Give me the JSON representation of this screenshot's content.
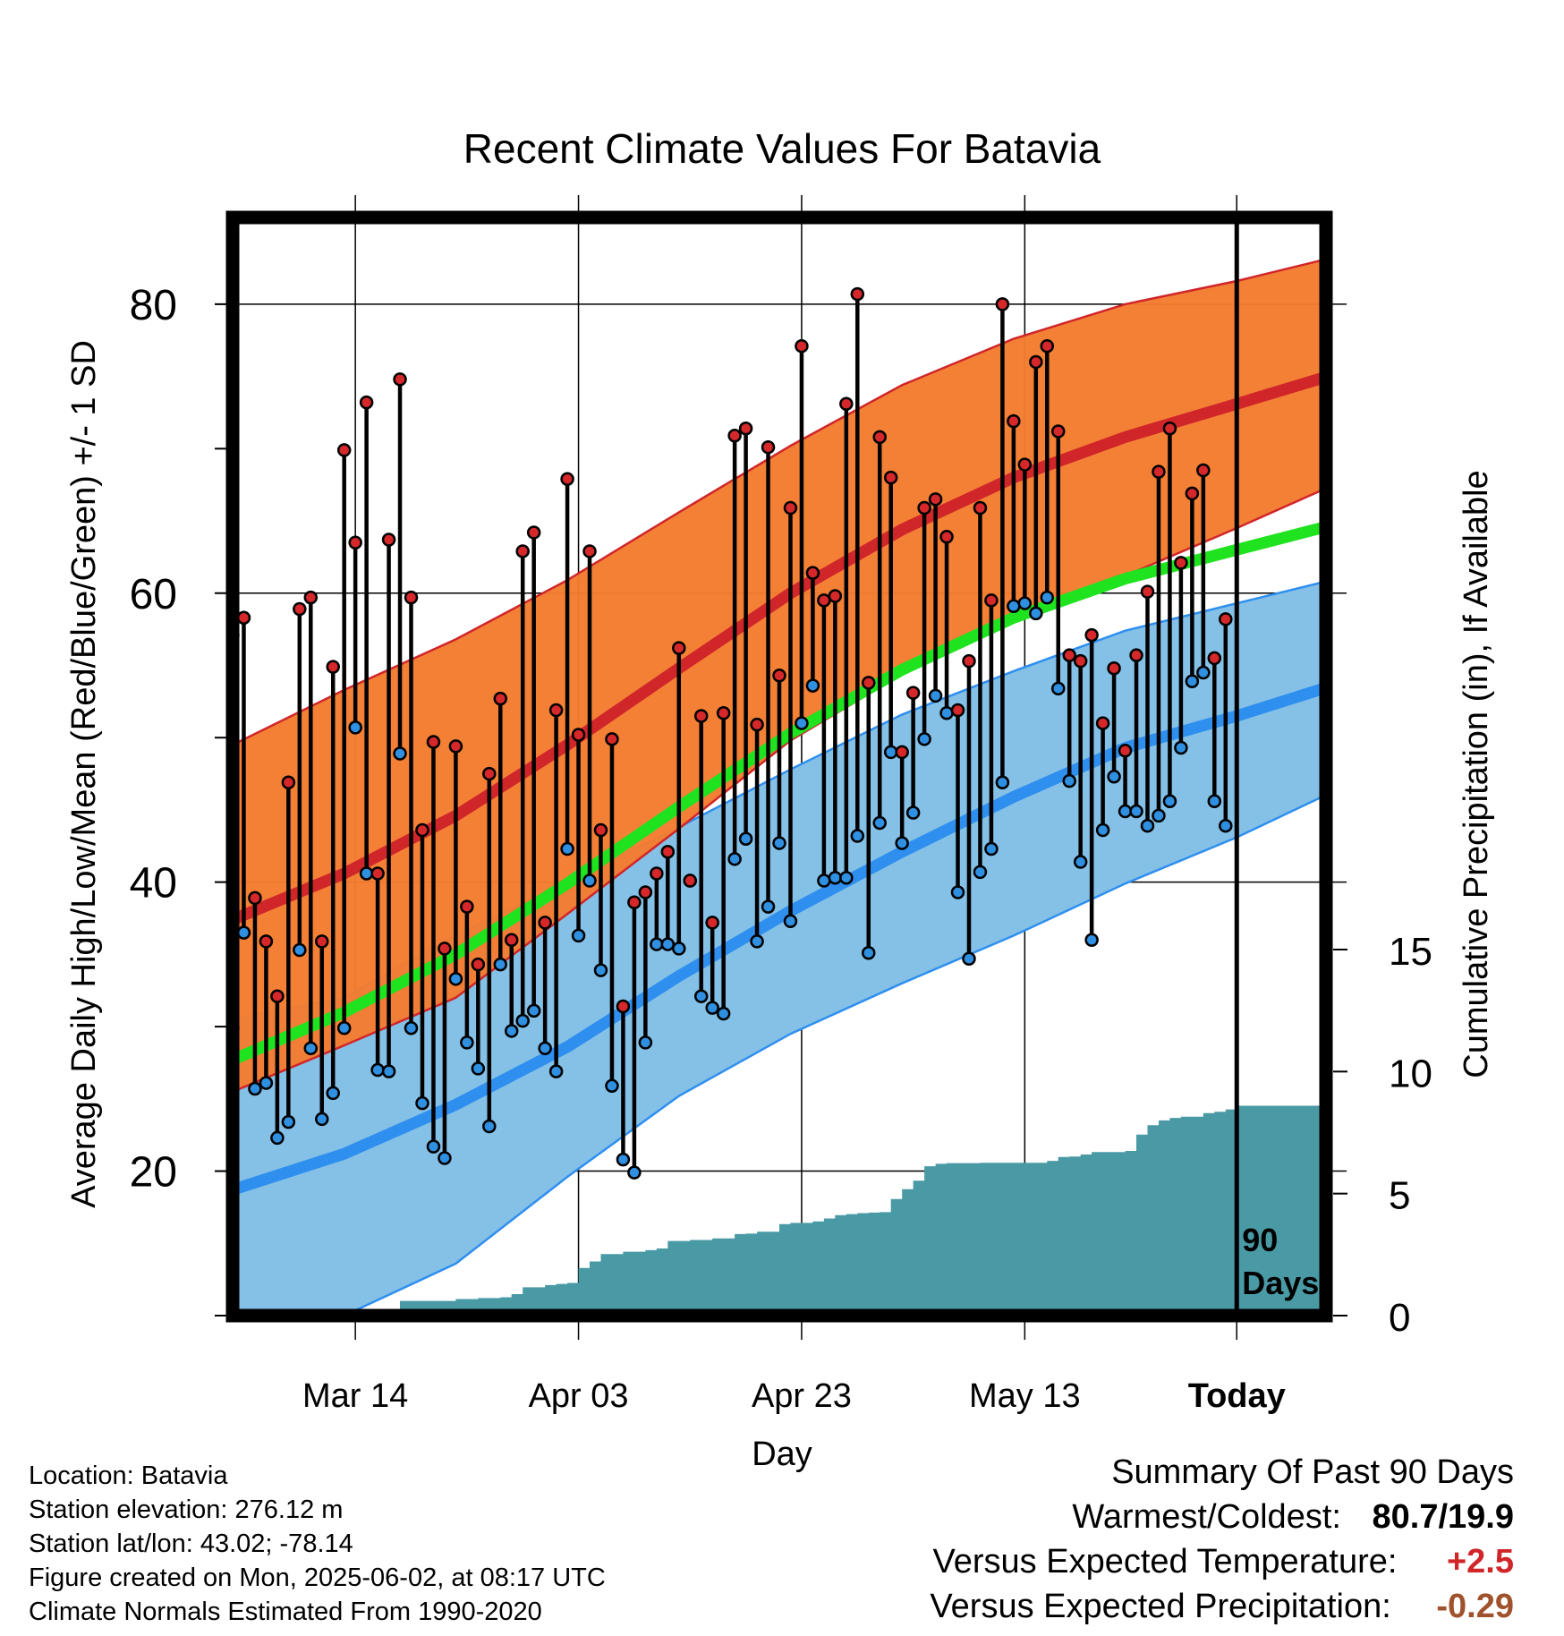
{
  "chart_data": {
    "type": "line",
    "title": "Recent Climate Values For Batavia",
    "xlabel": "Day",
    "ylabel": "Average Daily High/Low/Mean (Red/Blue/Green) +/- 1 SD",
    "y2label": "Cumulative Precipitation (in), If Available",
    "x_range_days": [
      -90,
      8
    ],
    "ylim": [
      10,
      86
    ],
    "y2lim": [
      0,
      45
    ],
    "x_ticks": [
      {
        "day": -79,
        "label": "Mar 14"
      },
      {
        "day": -59,
        "label": "Apr 03"
      },
      {
        "day": -39,
        "label": "Apr 23"
      },
      {
        "day": -19,
        "label": "May 13"
      },
      {
        "day": 0,
        "label": "Today"
      }
    ],
    "y_ticks": [
      20,
      40,
      60,
      80
    ],
    "y2_ticks": [
      0,
      5,
      10,
      15
    ],
    "today_marker_label": [
      "90",
      "Days"
    ],
    "colors": {
      "high_band": "#f47c30",
      "high_mean": "#d0262a",
      "low_band": "#85c1e7",
      "low_mean": "#2f8fef",
      "mean": "#1ee31e",
      "precip": "#4a9aa6",
      "high_marker": "#d6282a",
      "low_marker": "#2f8fe0"
    },
    "normals": {
      "days": [
        -90,
        -80,
        -70,
        -60,
        -50,
        -40,
        -30,
        -20,
        -10,
        0,
        9
      ],
      "high_mean": [
        37.4,
        40.6,
        44.6,
        49.5,
        54.8,
        60.0,
        64.4,
        68.0,
        70.8,
        73.1,
        75.2
      ],
      "high_upper": [
        49.5,
        53.3,
        56.8,
        60.9,
        65.6,
        70.2,
        74.4,
        77.6,
        80.0,
        81.6,
        83.3
      ],
      "high_lower": [
        25.5,
        28.7,
        32.0,
        37.8,
        43.7,
        49.8,
        54.4,
        58.0,
        61.2,
        64.5,
        67.6
      ],
      "mean": [
        27.7,
        31.0,
        35.0,
        39.9,
        45.2,
        50.3,
        54.7,
        58.3,
        61.0,
        63.0,
        64.8
      ],
      "low_mean": [
        18.7,
        21.2,
        24.6,
        28.6,
        33.5,
        38.0,
        42.1,
        45.9,
        49.3,
        51.5,
        53.7
      ],
      "low_upper": [
        30.5,
        32.0,
        36.3,
        40.0,
        43.8,
        47.8,
        51.6,
        54.6,
        57.4,
        59.3,
        61.0
      ],
      "low_lower": [
        10.0,
        10.0,
        13.6,
        19.6,
        25.2,
        29.5,
        33.0,
        36.3,
        39.9,
        43.1,
        46.4
      ]
    },
    "observed": {
      "days": [
        -90,
        -89,
        -88,
        -87,
        -86,
        -85,
        -84,
        -83,
        -82,
        -81,
        -80,
        -79,
        -78,
        -77,
        -76,
        -75,
        -74,
        -73,
        -72,
        -71,
        -70,
        -69,
        -68,
        -67,
        -66,
        -65,
        -64,
        -63,
        -62,
        -61,
        -60,
        -59,
        -58,
        -57,
        -56,
        -55,
        -54,
        -53,
        -52,
        -51,
        -50,
        -49,
        -48,
        -47,
        -46,
        -45,
        -44,
        -43,
        -42,
        -41,
        -40,
        -39,
        -38,
        -37,
        -36,
        -35,
        -34,
        -33,
        -32,
        -31,
        -30,
        -29,
        -28,
        -27,
        -26,
        -25,
        -24,
        -23,
        -22,
        -21,
        -20,
        -19,
        -18,
        -17,
        -16,
        -15,
        -14,
        -13,
        -12,
        -11,
        -10,
        -9,
        -8,
        -7,
        -6,
        -5,
        -4,
        -3,
        -2,
        -1
      ],
      "high": [
        57.1,
        58.3,
        38.9,
        35.9,
        32.1,
        46.9,
        58.9,
        59.7,
        35.9,
        54.9,
        69.9,
        63.5,
        73.2,
        40.6,
        63.7,
        74.8,
        59.7,
        43.6,
        49.7,
        35.4,
        49.4,
        38.3,
        34.3,
        47.5,
        52.7,
        36.0,
        62.9,
        64.2,
        37.2,
        51.9,
        67.9,
        50.2,
        62.9,
        43.6,
        49.9,
        31.4,
        38.6,
        39.3,
        40.6,
        42.1,
        56.2,
        40.1,
        51.5,
        37.2,
        51.7,
        70.9,
        71.4,
        50.9,
        70.1,
        54.3,
        65.9,
        77.1,
        61.4,
        59.5,
        59.8,
        73.1,
        80.7,
        53.8,
        70.8,
        68.0,
        49.0,
        53.1,
        65.9,
        66.5,
        63.9,
        51.9,
        55.3,
        65.9,
        59.5,
        80.0,
        71.9,
        68.9,
        76.0,
        77.1,
        71.2,
        55.7,
        55.3,
        57.1,
        51.0,
        54.8,
        49.1,
        55.7,
        60.1,
        68.4,
        71.4,
        62.1,
        66.9,
        68.5,
        55.5,
        58.2
      ],
      "low": [
        29.9,
        36.5,
        25.7,
        26.1,
        22.3,
        23.4,
        35.3,
        28.5,
        23.6,
        25.4,
        29.9,
        50.7,
        40.6,
        27.0,
        26.9,
        48.9,
        29.9,
        24.7,
        21.7,
        20.9,
        33.3,
        28.9,
        27.1,
        23.1,
        34.3,
        29.7,
        30.4,
        31.1,
        28.5,
        26.9,
        42.3,
        36.3,
        40.1,
        33.9,
        25.9,
        20.8,
        19.9,
        28.9,
        35.7,
        35.7,
        35.4,
        40.1,
        32.1,
        31.3,
        30.9,
        41.6,
        43.0,
        35.9,
        38.3,
        42.7,
        37.3,
        51.0,
        53.6,
        40.1,
        40.3,
        40.3,
        43.2,
        35.1,
        44.1,
        49.0,
        42.7,
        44.8,
        49.9,
        52.9,
        51.7,
        39.3,
        34.7,
        40.7,
        42.3,
        46.9,
        59.1,
        59.3,
        58.6,
        59.7,
        53.4,
        47.0,
        41.4,
        36.0,
        43.6,
        47.3,
        44.9,
        44.9,
        43.9,
        44.6,
        45.6,
        49.3,
        53.9,
        54.5,
        45.6,
        43.9
      ]
    },
    "precip_cumulative": {
      "days": [
        -90,
        -80,
        -79,
        -75,
        -70,
        -68,
        -66,
        -65,
        -64,
        -62,
        -61,
        -60,
        -59,
        -58,
        -57,
        -55,
        -53,
        -52,
        -51,
        -49,
        -48,
        -47,
        -45,
        -44,
        -43,
        -42,
        -41,
        -40,
        -39,
        -38,
        -37,
        -36,
        -35,
        -34,
        -33,
        -32,
        -31,
        -30,
        -29,
        -28,
        -27,
        -26,
        -25,
        -24,
        -23,
        -22,
        -21,
        -20,
        -19,
        -18,
        -17,
        -16,
        -15,
        -14,
        -13,
        -12,
        -11,
        -10,
        -9,
        -8,
        -7,
        -6,
        -5,
        -4,
        -3,
        -2,
        -1,
        0,
        9
      ],
      "values": [
        0.05,
        0.05,
        0.15,
        0.6,
        0.68,
        0.72,
        0.75,
        0.88,
        1.16,
        1.25,
        1.3,
        1.34,
        1.95,
        2.22,
        2.52,
        2.62,
        2.68,
        2.75,
        3.06,
        3.1,
        3.1,
        3.16,
        3.34,
        3.36,
        3.44,
        3.44,
        3.75,
        3.8,
        3.8,
        3.86,
        3.98,
        4.12,
        4.16,
        4.2,
        4.22,
        4.24,
        4.78,
        5.18,
        5.53,
        6.12,
        6.22,
        6.25,
        6.25,
        6.25,
        6.26,
        6.26,
        6.26,
        6.26,
        6.26,
        6.26,
        6.34,
        6.5,
        6.52,
        6.6,
        6.7,
        6.7,
        6.7,
        6.75,
        7.42,
        7.8,
        8.0,
        8.1,
        8.15,
        8.15,
        8.3,
        8.35,
        8.45,
        8.6,
        8.6
      ]
    }
  },
  "meta": {
    "location": "Location: Batavia",
    "elevation": "Station elevation: 276.12 m",
    "latlon": "Station lat/lon: 43.02; -78.14",
    "created": "Figure created on Mon, 2025-06-02, at 08:17 UTC",
    "normals": "Climate Normals Estimated From 1990-2020"
  },
  "summary": {
    "title": "Summary Of Past 90 Days",
    "warmest_label": "Warmest/Coldest:",
    "warmest_value": "80.7/19.9",
    "temp_label": "Versus Expected Temperature:",
    "temp_value": "+2.5",
    "temp_color": "#d0262a",
    "precip_label": "Versus Expected Precipitation:",
    "precip_value": "-0.29",
    "precip_color": "#a0522d"
  }
}
